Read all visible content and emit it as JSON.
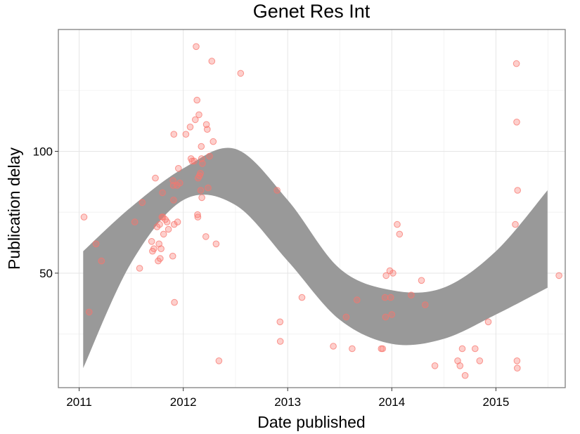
{
  "chart_data": {
    "type": "scatter",
    "title": "Genet Res Int",
    "xlabel": "Date published",
    "ylabel": "Publication delay",
    "x_scale": "date",
    "xlim": [
      "2010-10-20",
      "2015-09-01"
    ],
    "ylim": [
      3,
      150
    ],
    "x_ticks": [
      "2011",
      "2012",
      "2013",
      "2014",
      "2015"
    ],
    "x_tick_dates": [
      "2011-01-01",
      "2012-01-01",
      "2013-01-01",
      "2014-01-01",
      "2015-01-01"
    ],
    "y_ticks": [
      50,
      100
    ],
    "grid": true,
    "legend": "none",
    "point_color": "#F8766D",
    "band_color": "#999999",
    "series": [
      {
        "type": "scatter",
        "points": [
          [
            "2011-01-18",
            73
          ],
          [
            "2011-02-05",
            34
          ],
          [
            "2011-03-01",
            62
          ],
          [
            "2011-03-20",
            55
          ],
          [
            "2011-07-15",
            71
          ],
          [
            "2011-08-01",
            52
          ],
          [
            "2011-08-10",
            79
          ],
          [
            "2011-09-12",
            63
          ],
          [
            "2011-09-15",
            59
          ],
          [
            "2011-09-20",
            60
          ],
          [
            "2011-09-25",
            89
          ],
          [
            "2011-10-01",
            69
          ],
          [
            "2011-10-05",
            55
          ],
          [
            "2011-10-08",
            62
          ],
          [
            "2011-10-10",
            70
          ],
          [
            "2011-10-12",
            56
          ],
          [
            "2011-10-15",
            60
          ],
          [
            "2011-10-18",
            73
          ],
          [
            "2011-10-20",
            83
          ],
          [
            "2011-10-22",
            73
          ],
          [
            "2011-10-24",
            66
          ],
          [
            "2011-10-30",
            72
          ],
          [
            "2011-11-05",
            71
          ],
          [
            "2011-11-10",
            68
          ],
          [
            "2011-11-25",
            57
          ],
          [
            "2011-11-26",
            88
          ],
          [
            "2011-11-27",
            86
          ],
          [
            "2011-11-28",
            80
          ],
          [
            "2011-11-29",
            107
          ],
          [
            "2011-11-30",
            70
          ],
          [
            "2011-12-01",
            38
          ],
          [
            "2011-12-10",
            86
          ],
          [
            "2011-12-12",
            71
          ],
          [
            "2011-12-15",
            93
          ],
          [
            "2011-12-20",
            87
          ],
          [
            "2012-01-10",
            107
          ],
          [
            "2012-01-25",
            110
          ],
          [
            "2012-01-28",
            97
          ],
          [
            "2012-02-01",
            96
          ],
          [
            "2012-02-08",
            96
          ],
          [
            "2012-02-12",
            113
          ],
          [
            "2012-02-15",
            143
          ],
          [
            "2012-02-18",
            121
          ],
          [
            "2012-02-20",
            74
          ],
          [
            "2012-02-21",
            73
          ],
          [
            "2012-02-22",
            89
          ],
          [
            "2012-02-25",
            115
          ],
          [
            "2012-02-27",
            90
          ],
          [
            "2012-03-01",
            91
          ],
          [
            "2012-03-02",
            84
          ],
          [
            "2012-03-04",
            102
          ],
          [
            "2012-03-05",
            97
          ],
          [
            "2012-03-06",
            81
          ],
          [
            "2012-03-08",
            95
          ],
          [
            "2012-03-20",
            65
          ],
          [
            "2012-03-22",
            111
          ],
          [
            "2012-03-25",
            109
          ],
          [
            "2012-03-28",
            85
          ],
          [
            "2012-04-02",
            98
          ],
          [
            "2012-04-10",
            137
          ],
          [
            "2012-04-15",
            104
          ],
          [
            "2012-04-25",
            62
          ],
          [
            "2012-05-05",
            14
          ],
          [
            "2012-07-20",
            132
          ],
          [
            "2012-11-25",
            84
          ],
          [
            "2012-12-05",
            30
          ],
          [
            "2012-12-06",
            22
          ],
          [
            "2013-02-20",
            40
          ],
          [
            "2013-06-10",
            20
          ],
          [
            "2013-07-25",
            32
          ],
          [
            "2013-08-15",
            19
          ],
          [
            "2013-09-01",
            39
          ],
          [
            "2013-11-25",
            19
          ],
          [
            "2013-11-30",
            19
          ],
          [
            "2013-12-08",
            40
          ],
          [
            "2013-12-10",
            32
          ],
          [
            "2013-12-12",
            49
          ],
          [
            "2013-12-25",
            51
          ],
          [
            "2013-12-28",
            40
          ],
          [
            "2014-01-01",
            33
          ],
          [
            "2014-01-05",
            50
          ],
          [
            "2014-01-20",
            70
          ],
          [
            "2014-01-28",
            66
          ],
          [
            "2014-03-10",
            41
          ],
          [
            "2014-04-15",
            47
          ],
          [
            "2014-04-28",
            37
          ],
          [
            "2014-06-01",
            12
          ],
          [
            "2014-08-20",
            14
          ],
          [
            "2014-08-28",
            12
          ],
          [
            "2014-09-05",
            19
          ],
          [
            "2014-09-15",
            8
          ],
          [
            "2014-10-20",
            19
          ],
          [
            "2014-11-05",
            14
          ],
          [
            "2014-12-05",
            30
          ],
          [
            "2015-03-10",
            70
          ],
          [
            "2015-03-14",
            136
          ],
          [
            "2015-03-15",
            112
          ],
          [
            "2015-03-16",
            14
          ],
          [
            "2015-03-17",
            11
          ],
          [
            "2015-03-18",
            84
          ],
          [
            "2015-08-10",
            49
          ]
        ]
      },
      {
        "type": "band",
        "x": [
          "2011-01-15",
          "2011-07-01",
          "2012-01-01",
          "2012-07-01",
          "2013-01-01",
          "2013-07-01",
          "2014-01-01",
          "2014-07-01",
          "2015-01-01",
          "2015-07-01"
        ],
        "lower": [
          11,
          54,
          80,
          78,
          55,
          31,
          21,
          23,
          33,
          44
        ],
        "upper": [
          59,
          77,
          93,
          101,
          80,
          52,
          43,
          44,
          59,
          84
        ]
      }
    ]
  }
}
